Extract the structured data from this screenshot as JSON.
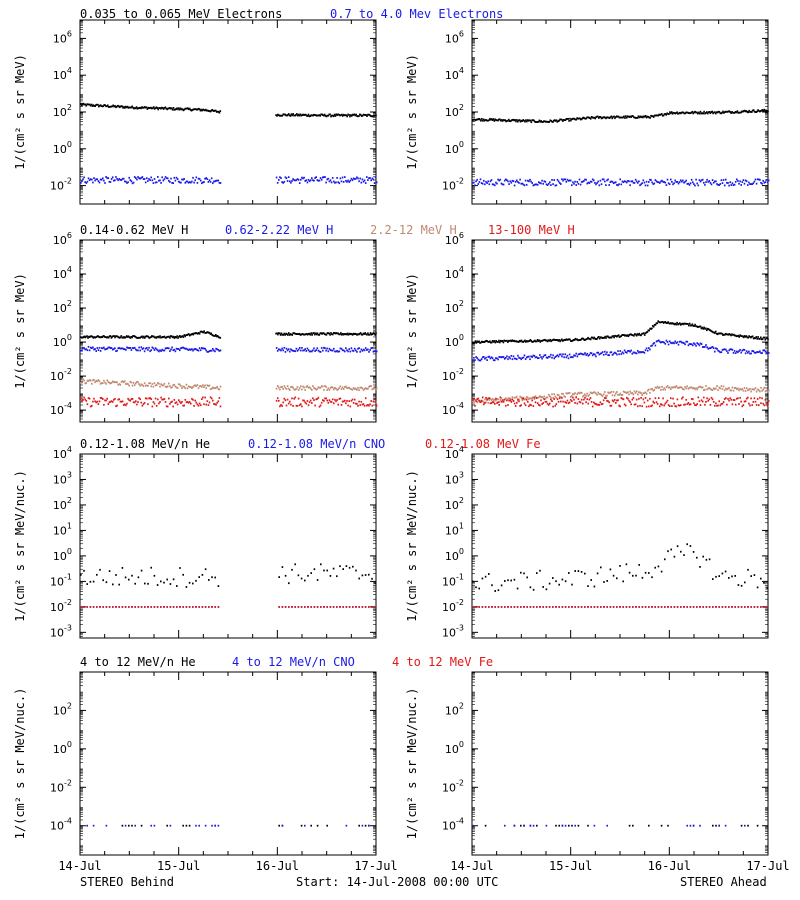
{
  "colors": {
    "black": "#000000",
    "blue": "#1a1ae6",
    "tan": "#c08a72",
    "red": "#e01818"
  },
  "footer": {
    "left": "STEREO Behind",
    "center": "Start: 14-Jul-2008 00:00 UTC",
    "right": "STEREO Ahead"
  },
  "x_ticks": [
    "14-Jul",
    "15-Jul",
    "16-Jul",
    "17-Jul"
  ],
  "rows": [
    {
      "ylabel": "1/(cm² s sr MeV)",
      "yticks": [
        {
          "b": "10",
          "e": "6"
        },
        {
          "b": "10",
          "e": "4"
        },
        {
          "b": "10",
          "e": "2"
        },
        {
          "b": "10",
          "e": "0"
        },
        {
          "b": "10",
          "e": "-2"
        }
      ],
      "header": [
        {
          "text": "0.035 to 0.065 MeV Electrons",
          "color": "black"
        },
        {
          "text": "0.7 to 4.0 Mev Electrons",
          "color": "blue"
        }
      ]
    },
    {
      "ylabel": "1/(cm² s sr MeV)",
      "yticks": [
        {
          "b": "10",
          "e": "6"
        },
        {
          "b": "10",
          "e": "4"
        },
        {
          "b": "10",
          "e": "2"
        },
        {
          "b": "10",
          "e": "0"
        },
        {
          "b": "10",
          "e": "-2"
        },
        {
          "b": "10",
          "e": "-4"
        }
      ],
      "header": [
        {
          "text": "0.14-0.62 MeV H",
          "color": "black"
        },
        {
          "text": "0.62-2.22 MeV H",
          "color": "blue"
        },
        {
          "text": "2.2-12 MeV H",
          "color": "tan"
        },
        {
          "text": "13-100 MeV H",
          "color": "red"
        }
      ]
    },
    {
      "ylabel": "1/(cm² s sr MeV/nuc.)",
      "yticks": [
        {
          "b": "10",
          "e": "4"
        },
        {
          "b": "10",
          "e": "3"
        },
        {
          "b": "10",
          "e": "2"
        },
        {
          "b": "10",
          "e": "1"
        },
        {
          "b": "10",
          "e": "0"
        },
        {
          "b": "10",
          "e": "-1"
        },
        {
          "b": "10",
          "e": "-2"
        },
        {
          "b": "10",
          "e": "-3"
        }
      ],
      "header": [
        {
          "text": "0.12-1.08 MeV/n He",
          "color": "black"
        },
        {
          "text": "0.12-1.08 MeV/n CNO",
          "color": "blue"
        },
        {
          "text": "0.12-1.08 MeV Fe",
          "color": "red"
        }
      ]
    },
    {
      "ylabel": "1/(cm² s sr MeV/nuc.)",
      "yticks": [
        {
          "b": "10",
          "e": "2"
        },
        {
          "b": "10",
          "e": "0"
        },
        {
          "b": "10",
          "e": "-2"
        },
        {
          "b": "10",
          "e": "-4"
        }
      ],
      "header": [
        {
          "text": "4 to 12 MeV/n He",
          "color": "black"
        },
        {
          "text": "4 to 12 MeV/n CNO",
          "color": "blue"
        },
        {
          "text": "4 to 12 MeV Fe",
          "color": "red"
        }
      ]
    }
  ],
  "chart_data": [
    {
      "type": "scatter",
      "panel": "STEREO Behind",
      "y_scale": "log",
      "ylim": [
        0.001,
        10000000
      ],
      "xlim": [
        "2008-07-14",
        "2008-07-17"
      ],
      "series": [
        {
          "name": "0.035 to 0.065 MeV Electrons",
          "color": "black",
          "x": [
            "2008-07-14",
            "2008-07-14T12:00",
            "2008-07-15T06:00",
            "2008-07-15T10:00",
            "2008-07-16",
            "2008-07-16T12:00",
            "2008-07-17"
          ],
          "y": [
            250,
            180,
            130,
            100,
            70,
            65,
            65
          ]
        },
        {
          "name": "0.7 to 4.0 Mev Electrons",
          "color": "blue",
          "x": [
            "2008-07-14",
            "2008-07-15T10:00",
            "2008-07-16",
            "2008-07-17"
          ],
          "y": [
            0.02,
            0.02,
            0.02,
            0.02
          ]
        }
      ]
    },
    {
      "type": "scatter",
      "panel": "STEREO Ahead",
      "y_scale": "log",
      "ylim": [
        0.001,
        10000000
      ],
      "xlim": [
        "2008-07-14",
        "2008-07-17"
      ],
      "series": [
        {
          "name": "0.035 to 0.065 MeV Electrons",
          "color": "black",
          "x": [
            "2008-07-14",
            "2008-07-14T18:00",
            "2008-07-15T06:00",
            "2008-07-15T20:00",
            "2008-07-16",
            "2008-07-16T12:00",
            "2008-07-17"
          ],
          "y": [
            40,
            30,
            50,
            55,
            90,
            95,
            120
          ]
        },
        {
          "name": "0.7 to 4.0 Mev Electrons",
          "color": "blue",
          "x": [
            "2008-07-14",
            "2008-07-17"
          ],
          "y": [
            0.015,
            0.015
          ]
        }
      ]
    },
    {
      "type": "scatter",
      "panel": "STEREO Behind",
      "y_scale": "log",
      "ylim": [
        2e-05,
        1000000
      ],
      "xlim": [
        "2008-07-14",
        "2008-07-17"
      ],
      "series": [
        {
          "name": "0.14-0.62 MeV H",
          "color": "black",
          "x": [
            "2008-07-14",
            "2008-07-15",
            "2008-07-15T06:00",
            "2008-07-15T10:00",
            "2008-07-16",
            "2008-07-17"
          ],
          "y": [
            2,
            2,
            4,
            2,
            3,
            3
          ]
        },
        {
          "name": "0.62-2.22 MeV H",
          "color": "blue",
          "x": [
            "2008-07-14",
            "2008-07-15T10:00",
            "2008-07-16",
            "2008-07-17"
          ],
          "y": [
            0.4,
            0.35,
            0.35,
            0.35
          ]
        },
        {
          "name": "2.2-12 MeV H",
          "color": "tan",
          "x": [
            "2008-07-14",
            "2008-07-15T10:00",
            "2008-07-16",
            "2008-07-17"
          ],
          "y": [
            0.005,
            0.002,
            0.002,
            0.002
          ]
        },
        {
          "name": "13-100 MeV H",
          "color": "red",
          "x": [
            "2008-07-14",
            "2008-07-17"
          ],
          "y": [
            0.0003,
            0.0003
          ]
        }
      ]
    },
    {
      "type": "scatter",
      "panel": "STEREO Ahead",
      "y_scale": "log",
      "ylim": [
        2e-05,
        1000000
      ],
      "xlim": [
        "2008-07-14",
        "2008-07-17"
      ],
      "series": [
        {
          "name": "0.14-0.62 MeV H",
          "color": "black",
          "x": [
            "2008-07-14",
            "2008-07-15",
            "2008-07-15T18:00",
            "2008-07-15T21:00",
            "2008-07-16T06:00",
            "2008-07-16T12:00",
            "2008-07-17"
          ],
          "y": [
            1,
            1.3,
            3,
            15,
            10,
            3,
            1.5
          ]
        },
        {
          "name": "0.62-2.22 MeV H",
          "color": "blue",
          "x": [
            "2008-07-14",
            "2008-07-15",
            "2008-07-15T18:00",
            "2008-07-15T21:00",
            "2008-07-16T06:00",
            "2008-07-16T12:00",
            "2008-07-17"
          ],
          "y": [
            0.1,
            0.15,
            0.3,
            1,
            0.8,
            0.3,
            0.25
          ]
        },
        {
          "name": "2.2-12 MeV H",
          "color": "tan",
          "x": [
            "2008-07-14",
            "2008-07-15",
            "2008-07-15T18:00",
            "2008-07-15T21:00",
            "2008-07-16T12:00",
            "2008-07-17"
          ],
          "y": [
            0.0003,
            0.0008,
            0.001,
            0.002,
            0.002,
            0.0015
          ]
        },
        {
          "name": "13-100 MeV H",
          "color": "red",
          "x": [
            "2008-07-14",
            "2008-07-17"
          ],
          "y": [
            0.0003,
            0.0003
          ]
        }
      ]
    },
    {
      "type": "scatter",
      "panel": "STEREO Behind",
      "y_scale": "log",
      "ylim": [
        0.0006,
        10000
      ],
      "xlim": [
        "2008-07-14",
        "2008-07-17"
      ],
      "series": [
        {
          "name": "0.12-1.08 MeV/n He",
          "color": "black",
          "x": [
            "2008-07-14",
            "2008-07-15T10:00",
            "2008-07-16",
            "2008-07-17"
          ],
          "y": [
            0.15,
            0.15,
            0.2,
            0.2
          ]
        },
        {
          "name": "0.12-1.08 MeV/n CNO",
          "color": "blue",
          "x": [
            "2008-07-14",
            "2008-07-17"
          ],
          "y": [
            0.01,
            0.01
          ]
        },
        {
          "name": "0.12-1.08 MeV Fe",
          "color": "red",
          "x": [
            "2008-07-14",
            "2008-07-17"
          ],
          "y": [
            0.01,
            0.01
          ]
        }
      ]
    },
    {
      "type": "scatter",
      "panel": "STEREO Ahead",
      "y_scale": "log",
      "ylim": [
        0.0006,
        10000
      ],
      "xlim": [
        "2008-07-14",
        "2008-07-17"
      ],
      "series": [
        {
          "name": "0.12-1.08 MeV/n He",
          "color": "black",
          "x": [
            "2008-07-14",
            "2008-07-15",
            "2008-07-15T18:00",
            "2008-07-16",
            "2008-07-16T06:00",
            "2008-07-16T12:00",
            "2008-07-17"
          ],
          "y": [
            0.08,
            0.12,
            0.25,
            0.8,
            1.5,
            0.15,
            0.12
          ]
        },
        {
          "name": "0.12-1.08 MeV/n CNO",
          "color": "blue",
          "x": [
            "2008-07-14",
            "2008-07-17"
          ],
          "y": [
            0.01,
            0.01
          ]
        },
        {
          "name": "0.12-1.08 MeV Fe",
          "color": "red",
          "x": [
            "2008-07-14",
            "2008-07-17"
          ],
          "y": [
            0.01,
            0.01
          ]
        }
      ]
    },
    {
      "type": "scatter",
      "panel": "STEREO Behind",
      "y_scale": "log",
      "ylim": [
        3e-06,
        10000
      ],
      "xlim": [
        "2008-07-14",
        "2008-07-17"
      ],
      "series": [
        {
          "name": "4 to 12 MeV/n He",
          "color": "black",
          "x": [
            "2008-07-14",
            "2008-07-17"
          ],
          "y": [
            0.0001,
            0.0001
          ]
        },
        {
          "name": "4 to 12 MeV/n CNO",
          "color": "blue",
          "x": [
            "2008-07-14",
            "2008-07-17"
          ],
          "y": [
            0.0001,
            0.0001
          ]
        }
      ]
    },
    {
      "type": "scatter",
      "panel": "STEREO Ahead",
      "y_scale": "log",
      "ylim": [
        3e-06,
        10000
      ],
      "xlim": [
        "2008-07-14",
        "2008-07-17"
      ],
      "series": [
        {
          "name": "4 to 12 MeV/n He",
          "color": "black",
          "x": [
            "2008-07-14",
            "2008-07-17"
          ],
          "y": [
            0.0001,
            0.0001
          ]
        },
        {
          "name": "4 to 12 MeV/n CNO",
          "color": "blue",
          "x": [
            "2008-07-14",
            "2008-07-17"
          ],
          "y": [
            0.0001,
            0.0001
          ]
        }
      ]
    }
  ]
}
